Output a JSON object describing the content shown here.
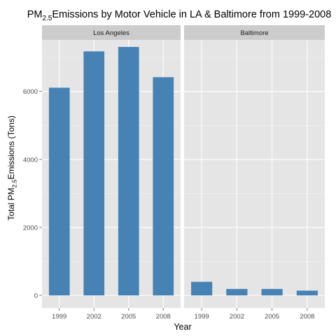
{
  "chart_data": {
    "type": "bar",
    "title": {
      "main": "PM",
      "sub": "2.5",
      "rest": "Emissions by Motor Vehicle in LA & Baltimore from 1999-2008"
    },
    "xlabel": "Year",
    "ylabel": {
      "main": "Total PM",
      "sub": "2.5",
      "rest": "Emissions (Tons)"
    },
    "categories": [
      "1999",
      "2002",
      "2005",
      "2008"
    ],
    "ylim": [
      0,
      7700
    ],
    "yticks": [
      0,
      2000,
      4000,
      6000
    ],
    "grid": true,
    "colors": {
      "bar": "#4682B4",
      "panel": "#E5E5E5",
      "strip": "#CCCCCC",
      "grid": "#FFFFFF"
    },
    "facets": [
      {
        "name": "Los Angeles",
        "values": [
          6110,
          7180,
          7310,
          6420
        ]
      },
      {
        "name": "Baltimore",
        "values": [
          400,
          190,
          190,
          140
        ]
      }
    ]
  }
}
